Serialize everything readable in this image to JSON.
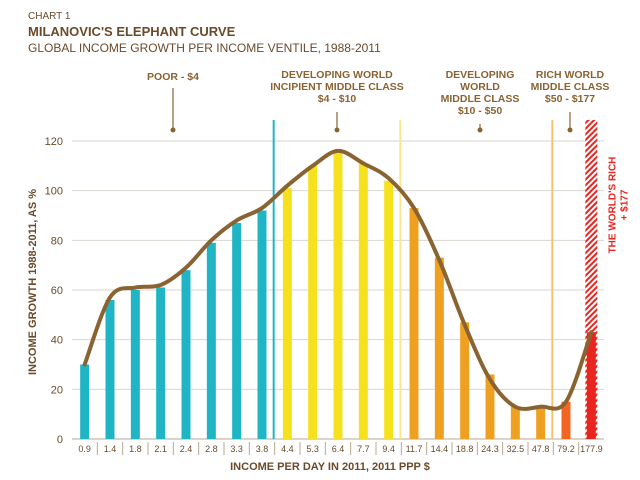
{
  "chart_data": {
    "type": "bar",
    "chart_number": "CHART 1",
    "title": "MILANOVIC'S ELEPHANT CURVE",
    "subtitle": "GLOBAL INCOME GROWTH PER INCOME VENTILE, 1988-2011",
    "xlabel": "INCOME PER DAY IN 2011, 2011 PPP $",
    "ylabel": "INCOME GROWTH 1988-2011, AS %",
    "ylim": [
      0,
      120
    ],
    "yticks": [
      0,
      20,
      40,
      60,
      80,
      100,
      120
    ],
    "grid": true,
    "categories": [
      "0.9",
      "1.4",
      "1.8",
      "2.1",
      "2.4",
      "2.8",
      "3.3",
      "3.8",
      "4.4",
      "5.3",
      "6.4",
      "7.7",
      "9.4",
      "11.7",
      "14.4",
      "18.8",
      "24.3",
      "32.5",
      "47.8",
      "79.2",
      "177.9"
    ],
    "values": [
      30,
      56,
      60,
      61,
      68,
      79,
      87,
      92,
      101,
      110,
      116,
      111,
      104,
      93,
      73,
      47,
      26,
      13,
      13,
      15,
      43
    ],
    "curve": [
      30,
      57,
      61,
      62,
      69,
      80,
      88,
      93,
      102,
      110,
      116,
      111,
      105,
      93,
      72,
      46,
      24,
      13,
      13,
      15,
      43
    ],
    "bar_colors": [
      "#1fb5c4",
      "#1fb5c4",
      "#1fb5c4",
      "#1fb5c4",
      "#1fb5c4",
      "#1fb5c4",
      "#1fb5c4",
      "#1fb5c4",
      "#f6e11f",
      "#f6e11f",
      "#f6e11f",
      "#f6e11f",
      "#f6e11f",
      "#f0a020",
      "#f0a020",
      "#f0a020",
      "#f0a020",
      "#f0a020",
      "#f0a020",
      "#f26522",
      "#e8251f"
    ],
    "curve_color": "#8a6332",
    "group_labels": [
      {
        "lines": [
          "POOR - $4"
        ],
        "color": "#8a6332"
      },
      {
        "lines": [
          "DEVELOPING WORLD",
          "INCIPIENT MIDDLE CLASS",
          "$4 - $10"
        ],
        "color": "#8a6332"
      },
      {
        "lines": [
          "DEVELOPING",
          "WORLD",
          "MIDDLE CLASS",
          "$10 - $50"
        ],
        "color": "#8a6332"
      },
      {
        "lines": [
          "RICH WORLD",
          "MIDDLE CLASS",
          "$50 - $177"
        ],
        "color": "#8a6332"
      }
    ],
    "divider_colors": [
      "#1fb5c4",
      "#fde68a",
      "#f6c26b"
    ],
    "rich_label": [
      "THE WORLD'S RICH",
      "+ $177"
    ],
    "rich_color": "#e8251f"
  }
}
